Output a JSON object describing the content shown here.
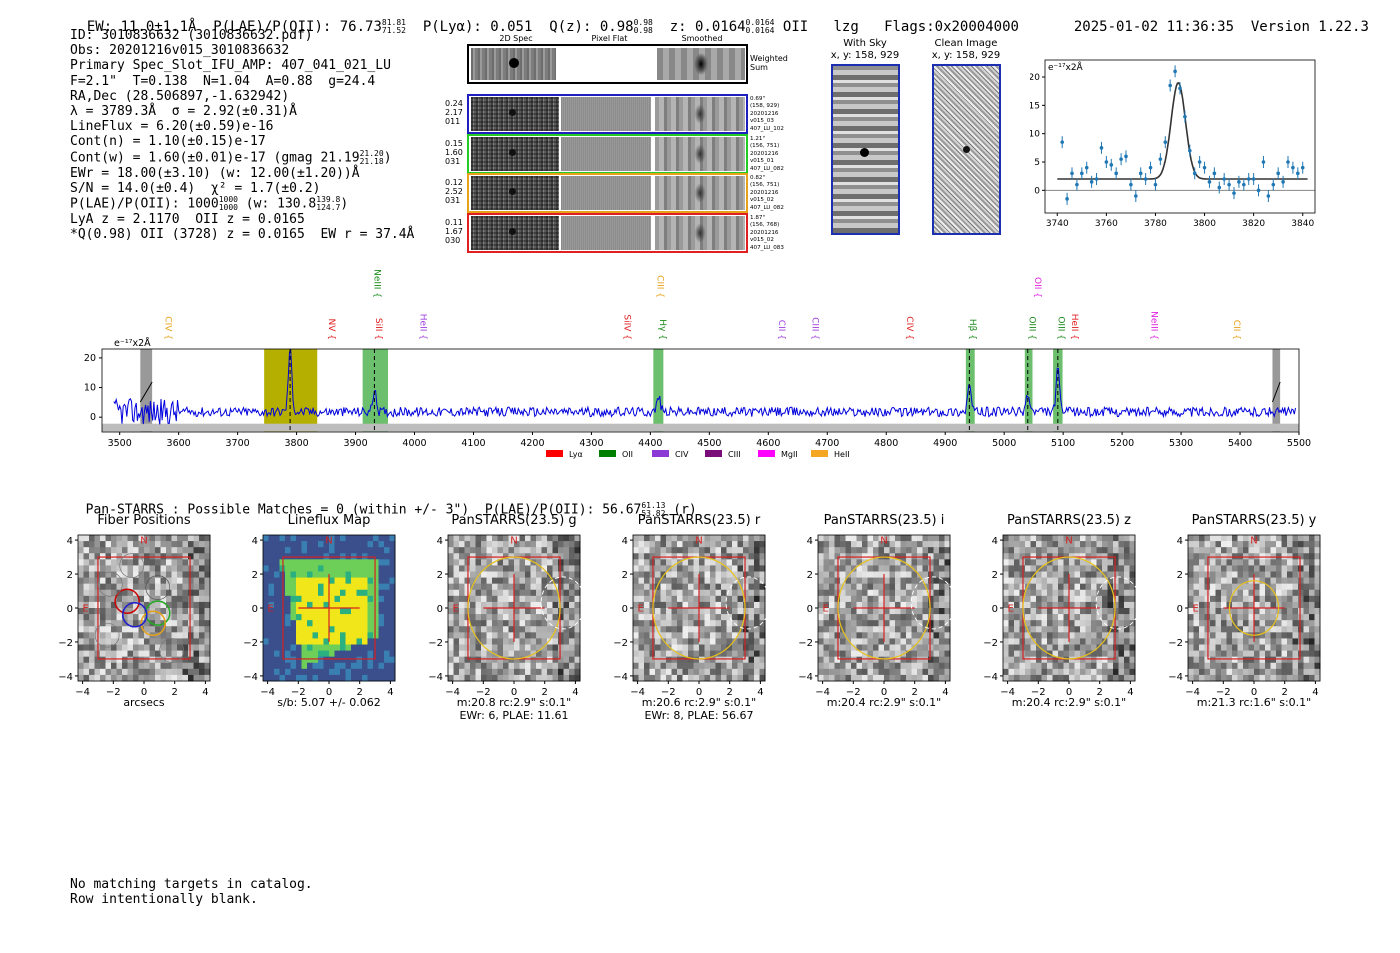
{
  "header": {
    "ew": "EW: 11.0±1.1Å",
    "plae_label": "P(LAE)/P(OII): 76.73",
    "plae_hi": "81.81",
    "plae_lo": "71.52",
    "plya": "P(Lyα): 0.051",
    "qz_label": "Q(z): 0.98",
    "qz_hi": "0.98",
    "qz_lo": "0.98",
    "z_label": "z: 0.0164",
    "z_hi": "0.0164",
    "z_lo": "0.0164",
    "line": "OII",
    "lzg": "lzg",
    "flags": "Flags:0x20004000",
    "datetime": "2025-01-02 11:36:35",
    "version": "Version 1.22.3"
  },
  "info": {
    "id": "ID: 3010836632 (3010836632.pdf)",
    "obs": "Obs: 20201216v015_3010836632",
    "primary": "Primary Spec_Slot_IFU_AMP: 407_041_021_LU",
    "params": "F=2.1\"  T=0.138  N=1.04  A=0.88  g=24.4",
    "radec": "RA,Dec (28.506897,-1.632942)",
    "lambda": "λ = 3789.3Å  σ = 2.92(±0.31)Å",
    "lineflux": "LineFlux = 6.20(±0.59)e-16",
    "contn": "Cont(n) = 1.10(±0.15)e-17",
    "contw": "Cont(w) = 1.60(±0.01)e-17 (gmag 21.19",
    "contw_hi": "21.20",
    "contw_lo": "21.18",
    "contw_end": ")",
    "ewr": "EWr = 18.00(±3.10) (w: 12.00(±1.20))Å",
    "sn": "S/N = 14.0(±0.4)  χ² = 1.7(±0.2)",
    "plae": "P(LAE)/P(OII): 1000",
    "plae_hi": "1000",
    "plae_lo": "1000",
    "plae_w": " (w: 130.8",
    "plae_w_hi": "139.8",
    "plae_w_lo": "124.7",
    "plae_end": ")",
    "lya": "LyA z = 2.1170  OII z = 0.0165",
    "qline": "*Q(0.98) OII (3728) z = 0.0165  EW r = 37.4Å"
  },
  "spec2d": {
    "cols": [
      "2D Spec",
      "Pixel Flat",
      "Smoothed"
    ],
    "sum_label": "Weighted Sum",
    "rows": [
      {
        "left": [
          "0.24",
          "2.17",
          "011"
        ],
        "right": [
          "0.69\"",
          "(158, 929)",
          "20201216",
          "v015_03",
          "407_LU_102"
        ],
        "color": "#1f1fbf"
      },
      {
        "left": [
          "0.15",
          "1.60",
          "031"
        ],
        "right": [
          "1.21\"",
          "(156, 751)",
          "20201216",
          "v015_01",
          "407_LU_082"
        ],
        "color": "#22cc22"
      },
      {
        "left": [
          "0.12",
          "2.52",
          "031"
        ],
        "right": [
          "0.82\"",
          "(156, 751)",
          "20201216",
          "v015_02",
          "407_LU_082"
        ],
        "color": "#e8a21a"
      },
      {
        "left": [
          "0.11",
          "1.67",
          "030"
        ],
        "right": [
          "1.87\"",
          "(156, 768)",
          "20201216",
          "v015_02",
          "407_LU_083"
        ],
        "color": "#e02020"
      }
    ]
  },
  "sky": {
    "with_sky_title": "With Sky",
    "with_sky_xy": "x, y: 158, 929",
    "clean_title": "Clean Image",
    "clean_xy": "x, y: 158, 929"
  },
  "zoom_chart": {
    "unit_label": "e⁻¹⁷x2Å",
    "type": "scatter",
    "xlim": [
      3735,
      3845
    ],
    "ylim": [
      -4,
      23
    ],
    "xticks": [
      "3740",
      "3760",
      "3780",
      "3800",
      "3820",
      "3840"
    ],
    "yticks": [
      "0",
      "5",
      "10",
      "15",
      "20"
    ],
    "points": [
      [
        3742,
        8.5
      ],
      [
        3744,
        -1.5
      ],
      [
        3746,
        3
      ],
      [
        3748,
        1
      ],
      [
        3750,
        3
      ],
      [
        3752,
        4
      ],
      [
        3754,
        1.5
      ],
      [
        3756,
        2
      ],
      [
        3758,
        7.5
      ],
      [
        3760,
        5
      ],
      [
        3762,
        4.5
      ],
      [
        3764,
        3
      ],
      [
        3766,
        5.5
      ],
      [
        3768,
        6
      ],
      [
        3770,
        1
      ],
      [
        3772,
        -1
      ],
      [
        3774,
        3
      ],
      [
        3776,
        2
      ],
      [
        3778,
        4
      ],
      [
        3780,
        1
      ],
      [
        3782,
        5.5
      ],
      [
        3784,
        8.5
      ],
      [
        3786,
        18.5
      ],
      [
        3788,
        21
      ],
      [
        3790,
        18
      ],
      [
        3792,
        13
      ],
      [
        3794,
        7
      ],
      [
        3796,
        3
      ],
      [
        3798,
        5
      ],
      [
        3800,
        4
      ],
      [
        3802,
        1.5
      ],
      [
        3804,
        3
      ],
      [
        3806,
        0.5
      ],
      [
        3808,
        2
      ],
      [
        3810,
        1
      ],
      [
        3812,
        -0.5
      ],
      [
        3814,
        1.5
      ],
      [
        3816,
        1
      ],
      [
        3818,
        2
      ],
      [
        3820,
        2
      ],
      [
        3822,
        0
      ],
      [
        3824,
        5
      ],
      [
        3826,
        -1
      ],
      [
        3828,
        1
      ],
      [
        3830,
        3
      ],
      [
        3832,
        1.5
      ],
      [
        3834,
        5
      ],
      [
        3836,
        4
      ],
      [
        3838,
        3
      ],
      [
        3840,
        4
      ]
    ],
    "fit_center": 3789.3,
    "fit_sigma": 2.92,
    "fit_amp": 17,
    "fit_base": 2
  },
  "chart_data": {
    "type": "line",
    "unit_label": "e⁻¹⁷x2Å",
    "xlim": [
      3470,
      5500
    ],
    "ylim": [
      -5,
      23
    ],
    "xticks": [
      "3500",
      "3600",
      "3700",
      "3800",
      "3900",
      "4000",
      "4100",
      "4200",
      "4300",
      "4400",
      "4500",
      "4600",
      "4700",
      "4800",
      "4900",
      "5000",
      "5100",
      "5200",
      "5300",
      "5400",
      "5500"
    ],
    "yticks": [
      "0",
      "10",
      "20"
    ],
    "lines": [
      {
        "label": "CIV",
        "x": 3578,
        "color": "#e8a21a",
        "row": 1
      },
      {
        "label": "NV",
        "x": 3855,
        "color": "#e02020",
        "row": 1
      },
      {
        "label": "NeIII",
        "x": 3932,
        "color": "#1a8a1a",
        "row": 0
      },
      {
        "label": "SiII",
        "x": 3935,
        "color": "#e02020",
        "row": 1
      },
      {
        "label": "HeII",
        "x": 4010,
        "color": "#a040e0",
        "row": 1
      },
      {
        "label": "SiIV",
        "x": 4356,
        "color": "#e02020",
        "row": 1
      },
      {
        "label": "CIII",
        "x": 4412,
        "color": "#e8a21a",
        "row": 0
      },
      {
        "label": "Hγ",
        "x": 4416,
        "color": "#1a8a1a",
        "row": 1
      },
      {
        "label": "CII",
        "x": 4618,
        "color": "#a040e0",
        "row": 1
      },
      {
        "label": "CIII",
        "x": 4675,
        "color": "#a040e0",
        "row": 1
      },
      {
        "label": "CIV",
        "x": 4835,
        "color": "#e02020",
        "row": 1
      },
      {
        "label": "Hβ",
        "x": 4942,
        "color": "#1a8a1a",
        "row": 1
      },
      {
        "label": "OII",
        "x": 5052,
        "color": "#e020e0",
        "row": 0
      },
      {
        "label": "OIII",
        "x": 5043,
        "color": "#1a8a1a",
        "row": 1
      },
      {
        "label": "OIII",
        "x": 5092,
        "color": "#1a8a1a",
        "row": 1
      },
      {
        "label": "HeII",
        "x": 5115,
        "color": "#e02020",
        "row": 1
      },
      {
        "label": "NeIII",
        "x": 5250,
        "color": "#e020e0",
        "row": 1
      },
      {
        "label": "CII",
        "x": 5390,
        "color": "#e8a21a",
        "row": 1
      }
    ],
    "legend": [
      {
        "label": "Lyα",
        "color": "#ff0000"
      },
      {
        "label": "OII",
        "color": "#007f00"
      },
      {
        "label": "CIV",
        "color": "#8c3ad6"
      },
      {
        "label": "CIII",
        "color": "#7a0d7a"
      },
      {
        "label": "MgII",
        "color": "#ff00ff"
      },
      {
        "label": "HeII",
        "color": "#f5a623"
      }
    ],
    "peaks": [
      [
        3789,
        21
      ],
      [
        3932,
        7
      ],
      [
        4414,
        5
      ],
      [
        4941,
        9
      ],
      [
        5040,
        6
      ],
      [
        5091,
        14
      ]
    ]
  },
  "panstarrs": {
    "text": "Pan-STARRS : Possible Matches = 0 (within +/- 3\")  P(LAE)/P(OII): 56.67",
    "hi": "61.13",
    "lo": "53.82",
    "band_suffix": "(r)"
  },
  "cutouts": [
    {
      "title": "Fiber Positions",
      "xlabel": "arcsecs",
      "xlabel2": "",
      "kind": "fiber"
    },
    {
      "title": "Lineflux Map",
      "xlabel": "s/b: 5.07 +/- 0.062",
      "xlabel2": "",
      "kind": "lineflux"
    },
    {
      "title": "PanSTARRS(23.5) g",
      "xlabel": "m:20.8 rc:2.9\"  s:0.1\"",
      "xlabel2": "EWr: 6, PLAE: 11.61",
      "kind": "ps",
      "r": 3.0
    },
    {
      "title": "PanSTARRS(23.5) r",
      "xlabel": "m:20.6 rc:2.9\"  s:0.1\"",
      "xlabel2": "EWr: 8, PLAE: 56.67",
      "kind": "ps",
      "r": 3.0
    },
    {
      "title": "PanSTARRS(23.5) i",
      "xlabel": "m:20.4 rc:2.9\"  s:0.1\"",
      "xlabel2": "",
      "kind": "ps",
      "r": 3.0
    },
    {
      "title": "PanSTARRS(23.5) z",
      "xlabel": "m:20.4 rc:2.9\"  s:0.1\"",
      "xlabel2": "",
      "kind": "ps",
      "r": 3.0
    },
    {
      "title": "PanSTARRS(23.5) y",
      "xlabel": "m:21.3 rc:1.6\"  s:0.1\"",
      "xlabel2": "",
      "kind": "ps",
      "r": 1.6
    }
  ],
  "cutout_axes": {
    "ticks": [
      "−4",
      "−2",
      "0",
      "2",
      "4"
    ],
    "north": "N",
    "east": "E"
  },
  "footer": {
    "line1": "No matching targets in catalog.",
    "line2": "Row intentionally blank."
  }
}
